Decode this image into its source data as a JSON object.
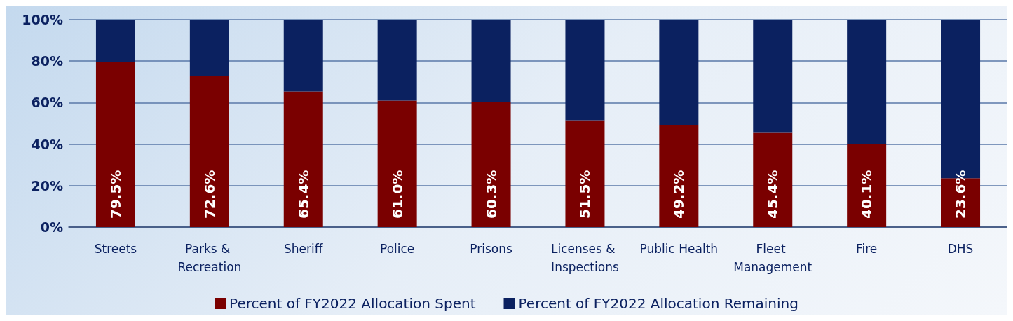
{
  "chart_data": {
    "type": "bar",
    "stacked": true,
    "categories": [
      "Streets",
      "Parks & Recreation",
      "Sheriff",
      "Police",
      "Prisons",
      "Licenses & Inspections",
      "Public Health",
      "Fleet Management",
      "Fire",
      "DHS"
    ],
    "series": [
      {
        "name": "Percent of FY2022 Allocation Spent",
        "color": "#7a0000",
        "values": [
          79.5,
          72.6,
          65.4,
          61.0,
          60.3,
          51.5,
          49.2,
          45.4,
          40.1,
          23.6
        ],
        "value_labels": [
          "79.5%",
          "72.6%",
          "65.4%",
          "61.0%",
          "60.3%",
          "51.5%",
          "49.2%",
          "45.4%",
          "40.1%",
          "23.6%"
        ]
      },
      {
        "name": "Percent of FY2022 Allocation Remaining",
        "color": "#0b2160",
        "values": [
          20.5,
          27.4,
          34.6,
          39.0,
          39.7,
          48.5,
          50.8,
          54.6,
          59.9,
          76.4
        ]
      }
    ],
    "ylim": [
      0,
      100
    ],
    "yticks": [
      {
        "value": 0,
        "label": "0%"
      },
      {
        "value": 20,
        "label": "20%"
      },
      {
        "value": 40,
        "label": "40%"
      },
      {
        "value": 60,
        "label": "60%"
      },
      {
        "value": 80,
        "label": "80%"
      },
      {
        "value": 100,
        "label": "100%"
      }
    ],
    "grid": "y",
    "legend": "bottom"
  }
}
